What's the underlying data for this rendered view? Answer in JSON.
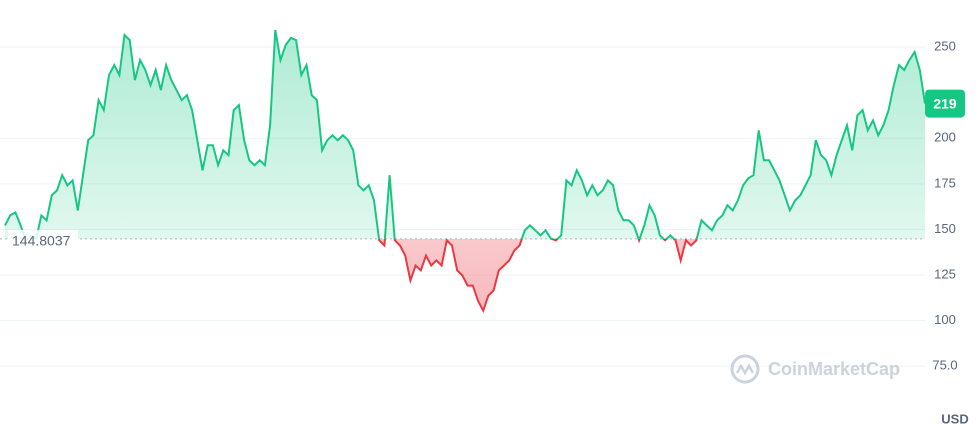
{
  "chart_data": {
    "type": "line",
    "values": [
      152.2,
      157.7,
      159.3,
      152.2,
      144,
      146.7,
      145,
      157.7,
      155,
      168.7,
      171.4,
      179.7,
      174.2,
      176.9,
      160.4,
      179.7,
      198.9,
      201.6,
      220.9,
      215.4,
      234.6,
      240.1,
      234.6,
      256.6,
      253.8,
      231.9,
      242.9,
      237.4,
      229.1,
      237.4,
      226.4,
      240.1,
      231.9,
      226.4,
      220.9,
      223.6,
      215.4,
      198.9,
      182.4,
      196.2,
      196.2,
      185.2,
      193.4,
      190.7,
      215.4,
      218.1,
      198.9,
      187.9,
      185.2,
      187.9,
      185.2,
      207.1,
      259.3,
      242.9,
      251.1,
      255,
      253.8,
      234.6,
      240.1,
      223.6,
      220.9,
      193.4,
      198.9,
      201.6,
      198.9,
      201.6,
      198.9,
      193.4,
      174.2,
      171.4,
      174.2,
      165.9,
      144,
      141.2,
      179.7,
      144,
      141.2,
      135.7,
      122,
      130.2,
      127.5,
      135.7,
      130.2,
      133,
      130.2,
      144,
      141.2,
      127.5,
      124.7,
      119.2,
      119.2,
      110.9,
      105.5,
      113.7,
      116.5,
      127.5,
      130.2,
      133,
      138.5,
      141.2,
      149.5,
      152.2,
      149.5,
      146.7,
      149.5,
      145,
      144,
      146.7,
      176.9,
      174.2,
      182.4,
      176.9,
      168.7,
      174.2,
      168.7,
      171.4,
      176.9,
      174.2,
      160.4,
      155,
      155,
      152.2,
      144,
      152.2,
      163.2,
      157.7,
      146.7,
      144,
      146.7,
      144,
      133,
      144,
      141.2,
      144,
      155,
      152.2,
      149.5,
      155,
      157.7,
      163.2,
      160.4,
      165.9,
      174.2,
      178,
      179.7,
      204.3,
      187.9,
      187.9,
      182.4,
      176.9,
      168.7,
      160.4,
      165.9,
      168.7,
      174.2,
      179.7,
      198.9,
      190.7,
      187.9,
      179.7,
      190.7,
      198.9,
      207.1,
      193.4,
      212.6,
      215.4,
      204.3,
      209.8,
      201.6,
      207.1,
      215.4,
      229.1,
      240.1,
      237.4,
      242.9,
      247.3,
      237.4,
      219
    ],
    "baseline": 144.8037,
    "baseline_label": "144.8037",
    "current_price_label": "219",
    "up_color": "#16c784",
    "down_color": "#ea3943",
    "ylim": [
      40,
      275.8
    ],
    "yticks": [
      {
        "value": 75,
        "label": "75.0"
      },
      100,
      125,
      150,
      175,
      200,
      250
    ],
    "grid": true,
    "currency": "USD",
    "watermark": "CoinMarketCap"
  }
}
